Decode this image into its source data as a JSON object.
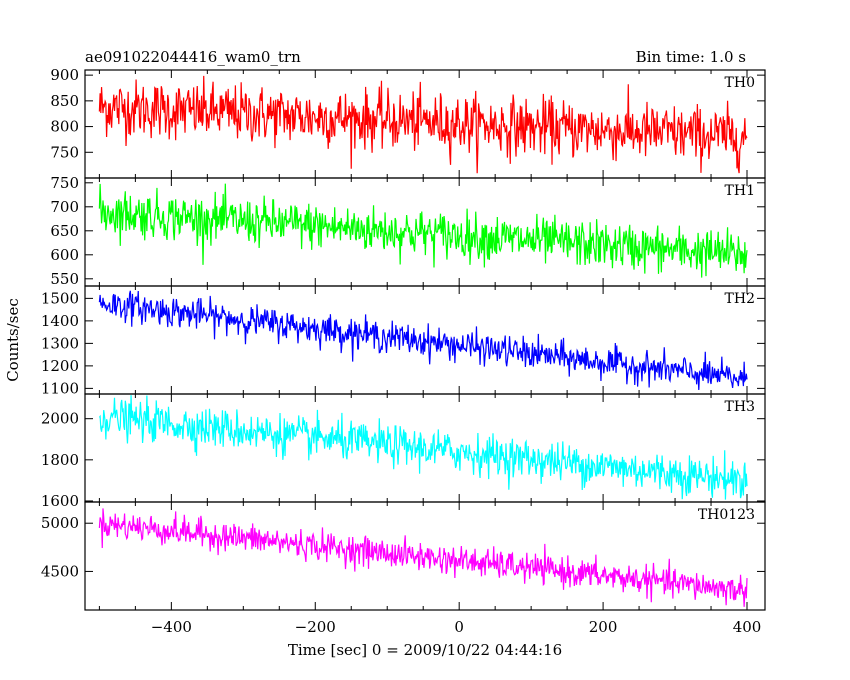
{
  "header": {
    "title": "ae091022044416_wam0_trn",
    "bin_time": "Bin time: 1.0 s"
  },
  "chart_data": {
    "type": "line",
    "xlabel": "Time [sec] 0 = 2009/10/22 04:44:16",
    "ylabel": "Counts/sec",
    "xlim": [
      -520,
      425
    ],
    "x_ticks": [
      -400,
      -200,
      0,
      200,
      400
    ],
    "x_tick_labels": [
      "−400",
      "−200",
      "0",
      "200",
      "400"
    ],
    "x_range": [
      -500,
      400
    ],
    "bin_size": 1.0,
    "panels": [
      {
        "name": "TH0",
        "color": "#ff0000",
        "ylim": [
          700,
          910
        ],
        "y_ticks": [
          750,
          800,
          850,
          900
        ],
        "y_tick_labels": [
          "750",
          "800",
          "850",
          "900"
        ],
        "trend_start": 838,
        "trend_end": 780,
        "noise": 28
      },
      {
        "name": "TH1",
        "color": "#00ff00",
        "ylim": [
          535,
          760
        ],
        "y_ticks": [
          550,
          600,
          650,
          700,
          750
        ],
        "y_tick_labels": [
          "550",
          "600",
          "650",
          "700",
          "750"
        ],
        "trend_start": 690,
        "trend_end": 600,
        "noise": 24
      },
      {
        "name": "TH2",
        "color": "#0000ff",
        "ylim": [
          1075,
          1555
        ],
        "y_ticks": [
          1100,
          1200,
          1300,
          1400,
          1500
        ],
        "y_tick_labels": [
          "1100",
          "1200",
          "1300",
          "1400",
          "1500"
        ],
        "trend_start": 1480,
        "trend_end": 1140,
        "noise": 34
      },
      {
        "name": "TH3",
        "color": "#00ffff",
        "ylim": [
          1595,
          2120
        ],
        "y_ticks": [
          1600,
          1800,
          2000
        ],
        "y_tick_labels": [
          "1600",
          "1800",
          "2000"
        ],
        "trend_start": 2010,
        "trend_end": 1700,
        "noise": 48
      },
      {
        "name": "TH0123",
        "color": "#ff00ff",
        "ylim": [
          4100,
          5220
        ],
        "y_ticks": [
          4500,
          5000
        ],
        "y_tick_labels": [
          "4500",
          "5000"
        ],
        "trend_start": 5000,
        "trend_end": 4300,
        "noise": 75
      }
    ]
  }
}
